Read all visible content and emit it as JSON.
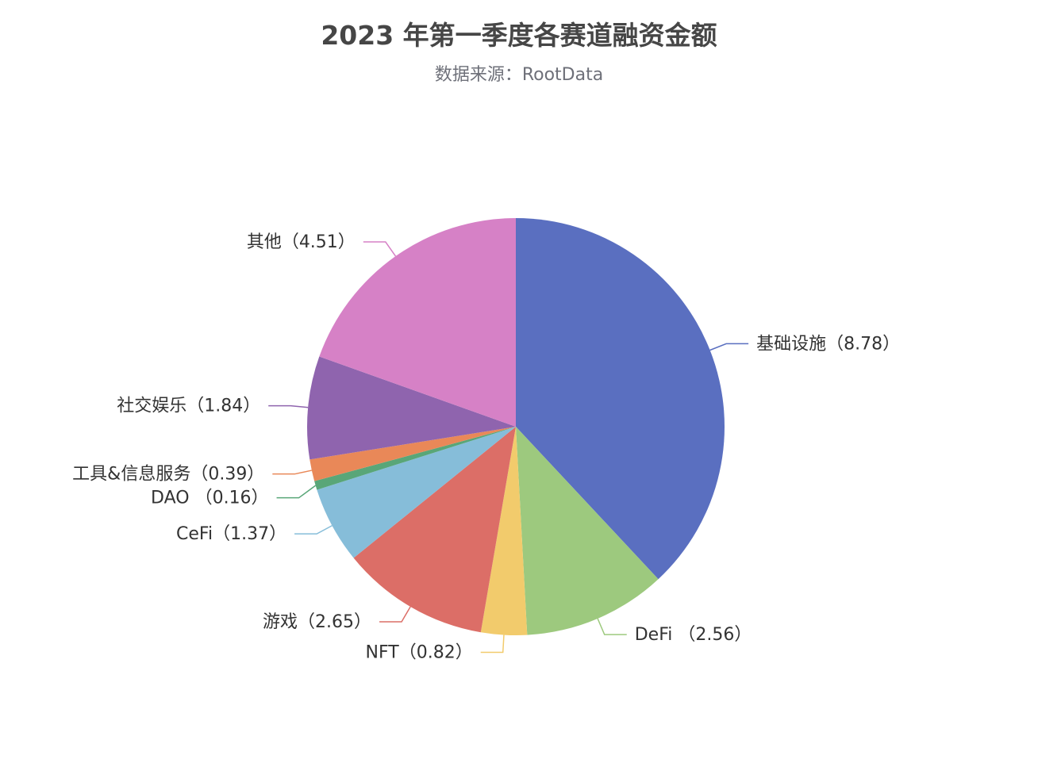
{
  "chart_data": {
    "type": "pie",
    "title": "2023 年第一季度各赛道融资金额",
    "subtitle": "数据来源：RootData",
    "start": "top",
    "direction": "clockwise",
    "slices": [
      {
        "name": "基础设施",
        "value": 8.78,
        "label": "基础设施（8.78）",
        "color": "#5a6fc0"
      },
      {
        "name": "DeFi",
        "value": 2.56,
        "label": "DeFi （2.56）",
        "color": "#9dc97e"
      },
      {
        "name": "NFT",
        "value": 0.82,
        "label": "NFT（0.82）",
        "color": "#f2cb6c"
      },
      {
        "name": "游戏",
        "value": 2.65,
        "label": "游戏（2.65）",
        "color": "#dc6e67"
      },
      {
        "name": "CeFi",
        "value": 1.37,
        "label": "CeFi（1.37）",
        "color": "#86bdd9"
      },
      {
        "name": "DAO",
        "value": 0.16,
        "label": "DAO （0.16）",
        "color": "#59a678"
      },
      {
        "name": "工具&信息服务",
        "value": 0.39,
        "label": "工具&信息服务（0.39）",
        "color": "#e98858"
      },
      {
        "name": "社交娱乐",
        "value": 1.84,
        "label": "社交娱乐（1.84）",
        "color": "#8f64ae"
      },
      {
        "name": "其他",
        "value": 4.51,
        "label": "其他（4.51）",
        "color": "#d681c6"
      }
    ]
  }
}
